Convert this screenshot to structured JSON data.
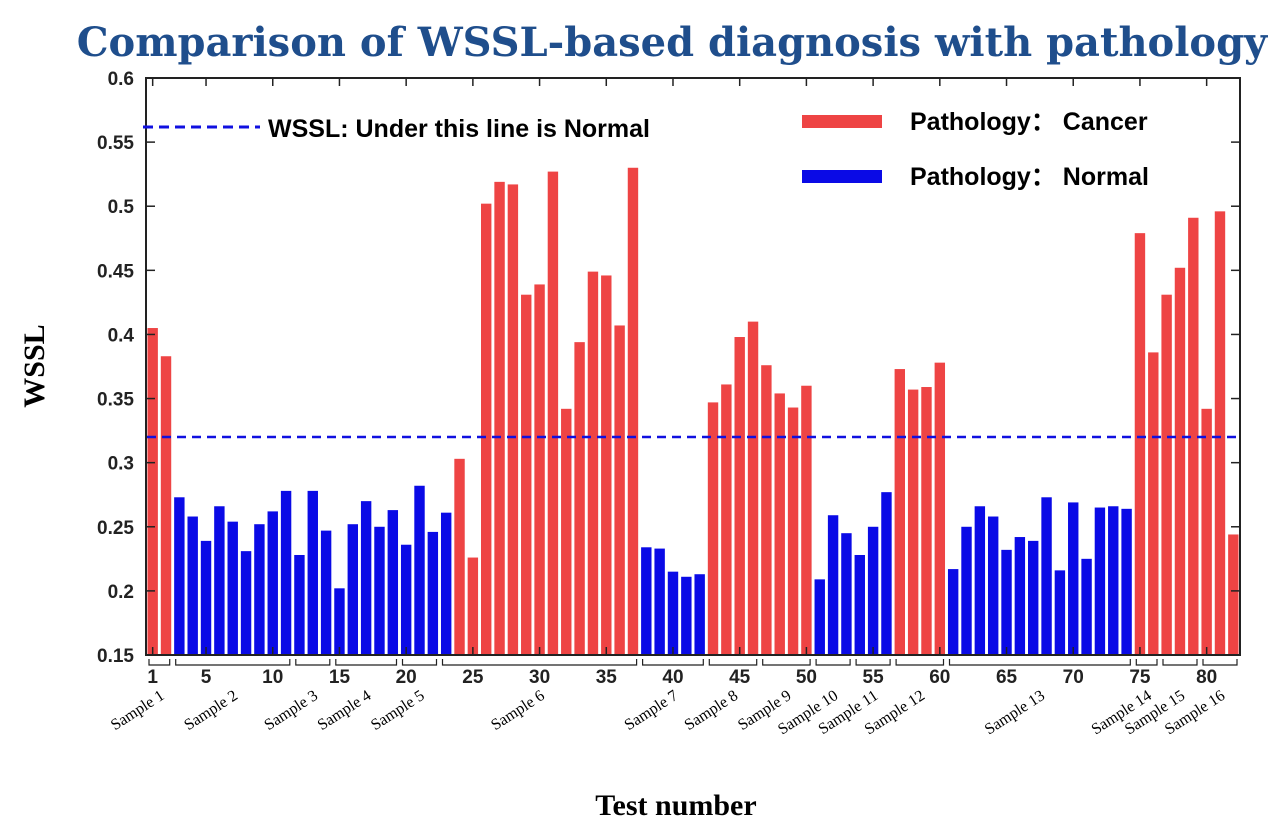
{
  "chart_data": {
    "type": "bar",
    "title": "Comparison of WSSL-based diagnosis with pathology",
    "xlabel": "Test number",
    "ylabel": "WSSL",
    "ylim": [
      0.15,
      0.6
    ],
    "xlim": [
      0.5,
      82.5
    ],
    "yticks": [
      0.15,
      0.2,
      0.25,
      0.3,
      0.35,
      0.4,
      0.45,
      0.5,
      0.55,
      0.6
    ],
    "ytick_labels": [
      "0.15",
      "0.2",
      "0.25",
      "0.3",
      "0.35",
      "0.4",
      "0.45",
      "0.5",
      "0.55",
      "0.6"
    ],
    "xticks": [
      1,
      5,
      10,
      15,
      20,
      25,
      30,
      35,
      40,
      45,
      50,
      55,
      60,
      65,
      70,
      75,
      80
    ],
    "xtick_labels": [
      "1",
      "5",
      "10",
      "15",
      "20",
      "25",
      "30",
      "35",
      "40",
      "45",
      "50",
      "55",
      "60",
      "65",
      "70",
      "75",
      "80"
    ],
    "threshold": {
      "value": 0.32,
      "label": "WSSL: Under this line is Normal",
      "color": "#1010e0",
      "style": "dashed"
    },
    "legend": {
      "placement": "top-right",
      "entries": [
        {
          "label": "Pathology： Cancer",
          "color": "#ee4444"
        },
        {
          "label": "Pathology： Normal",
          "color": "#0a0ae6"
        }
      ]
    },
    "colors": {
      "Cancer": "#ee4444",
      "Normal": "#0a0ae6"
    },
    "x": [
      1,
      2,
      3,
      4,
      5,
      6,
      7,
      8,
      9,
      10,
      11,
      12,
      13,
      14,
      15,
      16,
      17,
      18,
      19,
      20,
      21,
      22,
      23,
      24,
      25,
      26,
      27,
      28,
      29,
      30,
      31,
      32,
      33,
      34,
      35,
      36,
      37,
      38,
      39,
      40,
      41,
      42,
      43,
      44,
      45,
      46,
      47,
      48,
      49,
      50,
      51,
      52,
      53,
      54,
      55,
      56,
      57,
      58,
      59,
      60,
      61,
      62,
      63,
      64,
      65,
      66,
      67,
      68,
      69,
      70,
      71,
      72,
      73,
      74,
      75,
      76,
      77,
      78,
      79,
      80,
      81,
      82
    ],
    "values": [
      0.405,
      0.383,
      0.273,
      0.258,
      0.239,
      0.266,
      0.254,
      0.231,
      0.252,
      0.262,
      0.278,
      0.228,
      0.278,
      0.247,
      0.202,
      0.252,
      0.27,
      0.25,
      0.263,
      0.236,
      0.282,
      0.246,
      0.261,
      0.303,
      0.226,
      0.502,
      0.519,
      0.517,
      0.431,
      0.439,
      0.527,
      0.342,
      0.394,
      0.449,
      0.446,
      0.407,
      0.53,
      0.234,
      0.233,
      0.215,
      0.211,
      0.213,
      0.347,
      0.361,
      0.398,
      0.41,
      0.376,
      0.354,
      0.343,
      0.36,
      0.209,
      0.259,
      0.245,
      0.228,
      0.25,
      0.277,
      0.373,
      0.357,
      0.359,
      0.378,
      0.217,
      0.25,
      0.266,
      0.258,
      0.232,
      0.242,
      0.239,
      0.273,
      0.216,
      0.269,
      0.225,
      0.265,
      0.266,
      0.264,
      0.479,
      0.386,
      0.431,
      0.452,
      0.491,
      0.342,
      0.496,
      0.244
    ],
    "classes": [
      "Cancer",
      "Cancer",
      "Normal",
      "Normal",
      "Normal",
      "Normal",
      "Normal",
      "Normal",
      "Normal",
      "Normal",
      "Normal",
      "Normal",
      "Normal",
      "Normal",
      "Normal",
      "Normal",
      "Normal",
      "Normal",
      "Normal",
      "Normal",
      "Normal",
      "Normal",
      "Normal",
      "Cancer",
      "Cancer",
      "Cancer",
      "Cancer",
      "Cancer",
      "Cancer",
      "Cancer",
      "Cancer",
      "Cancer",
      "Cancer",
      "Cancer",
      "Cancer",
      "Cancer",
      "Cancer",
      "Normal",
      "Normal",
      "Normal",
      "Normal",
      "Normal",
      "Cancer",
      "Cancer",
      "Cancer",
      "Cancer",
      "Cancer",
      "Cancer",
      "Cancer",
      "Cancer",
      "Normal",
      "Normal",
      "Normal",
      "Normal",
      "Normal",
      "Normal",
      "Cancer",
      "Cancer",
      "Cancer",
      "Cancer",
      "Normal",
      "Normal",
      "Normal",
      "Normal",
      "Normal",
      "Normal",
      "Normal",
      "Normal",
      "Normal",
      "Normal",
      "Normal",
      "Normal",
      "Normal",
      "Normal",
      "Cancer",
      "Cancer",
      "Cancer",
      "Cancer",
      "Cancer",
      "Cancer",
      "Cancer",
      "Cancer"
    ],
    "samples": [
      {
        "name": "Sample 1",
        "tests": [
          1,
          2
        ]
      },
      {
        "name": "Sample 2",
        "tests": [
          3,
          11
        ]
      },
      {
        "name": "Sample 3",
        "tests": [
          12,
          14
        ]
      },
      {
        "name": "Sample 4",
        "tests": [
          15,
          19
        ]
      },
      {
        "name": "Sample 5",
        "tests": [
          20,
          22
        ]
      },
      {
        "name": "Sample 6",
        "tests": [
          23,
          37
        ]
      },
      {
        "name": "Sample 7",
        "tests": [
          38,
          42
        ]
      },
      {
        "name": "Sample 8",
        "tests": [
          43,
          46
        ]
      },
      {
        "name": "Sample 9",
        "tests": [
          47,
          50
        ]
      },
      {
        "name": "Sample 10",
        "tests": [
          51,
          53
        ]
      },
      {
        "name": "Sample 11",
        "tests": [
          54,
          56
        ]
      },
      {
        "name": "Sample 12",
        "tests": [
          57,
          60
        ]
      },
      {
        "name": "Sample 13",
        "tests": [
          61,
          74
        ]
      },
      {
        "name": "Sample 14",
        "tests": [
          75,
          76
        ]
      },
      {
        "name": "Sample 15",
        "tests": [
          77,
          79
        ]
      },
      {
        "name": "Sample 16",
        "tests": [
          80,
          82
        ]
      }
    ]
  }
}
